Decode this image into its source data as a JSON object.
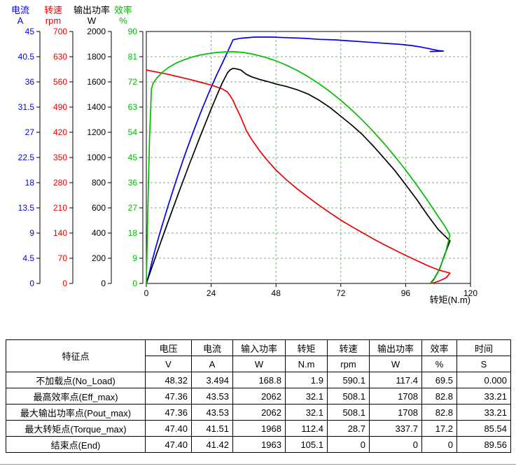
{
  "chart": {
    "x_axis": {
      "label": "转矩(N.m)",
      "min": 0,
      "max": 120,
      "ticks": [
        "0",
        "24",
        "48",
        "72",
        "96",
        "120"
      ]
    },
    "grid_color": "#6abf6a",
    "y_axes": [
      {
        "id": "current",
        "label": "电流",
        "unit": "A",
        "color": "#0000ee",
        "max": 45,
        "ticks": [
          "0",
          "4.5",
          "9",
          "13.5",
          "18",
          "22.5",
          "27",
          "31.5",
          "36",
          "40.5",
          "45"
        ]
      },
      {
        "id": "speed",
        "label": "转速",
        "unit": "rpm",
        "color": "#ee0000",
        "max": 700,
        "ticks": [
          "0",
          "70",
          "140",
          "210",
          "280",
          "350",
          "420",
          "490",
          "560",
          "630",
          "700"
        ]
      },
      {
        "id": "power-out",
        "label": "输出功率",
        "unit": "W",
        "color": "#000000",
        "max": 2000,
        "ticks": [
          "0",
          "200",
          "400",
          "600",
          "800",
          "1000",
          "1200",
          "1400",
          "1600",
          "1800",
          "2000"
        ]
      },
      {
        "id": "efficiency",
        "label": "效率",
        "unit": "%",
        "color": "#00bb00",
        "max": 90,
        "ticks": [
          "0",
          "9",
          "18",
          "27",
          "36",
          "45",
          "54",
          "63",
          "72",
          "81",
          "90"
        ]
      }
    ]
  },
  "chart_data": {
    "type": "line",
    "xlabel": "转矩(N.m)",
    "x_range": [
      0,
      120
    ],
    "grid": true,
    "series": [
      {
        "id": "current",
        "name": "电流",
        "unit": "A",
        "color": "#0000ee",
        "axis_max": 45,
        "points": [
          [
            0,
            0
          ],
          [
            0.8,
            1.3
          ],
          [
            1.9,
            3.49
          ],
          [
            3,
            5.6
          ],
          [
            5,
            9
          ],
          [
            8,
            13.8
          ],
          [
            11,
            18.3
          ],
          [
            14,
            22.6
          ],
          [
            17,
            26.6
          ],
          [
            20,
            30.4
          ],
          [
            23,
            33.9
          ],
          [
            26,
            37.2
          ],
          [
            28,
            39.2
          ],
          [
            30,
            41.3
          ],
          [
            32.1,
            43.53
          ],
          [
            35,
            43.8
          ],
          [
            40,
            44
          ],
          [
            46,
            44
          ],
          [
            52,
            43.9
          ],
          [
            58,
            43.8
          ],
          [
            64,
            43.6
          ],
          [
            70,
            43.5
          ],
          [
            76,
            43.3
          ],
          [
            82,
            43.1
          ],
          [
            88,
            42.9
          ],
          [
            94,
            42.7
          ],
          [
            98,
            42.5
          ],
          [
            102,
            42.2
          ],
          [
            105,
            41.9
          ],
          [
            108,
            41.6
          ],
          [
            110,
            41.5
          ],
          [
            107.5,
            41.45
          ],
          [
            105.1,
            41.42
          ]
        ]
      },
      {
        "id": "speed",
        "name": "转速",
        "unit": "rpm",
        "color": "#ee0000",
        "axis_max": 700,
        "points": [
          [
            0,
            593
          ],
          [
            4,
            587
          ],
          [
            8,
            581
          ],
          [
            12,
            574
          ],
          [
            16,
            567
          ],
          [
            20,
            559
          ],
          [
            24,
            551
          ],
          [
            26,
            546
          ],
          [
            28,
            541
          ],
          [
            30,
            532
          ],
          [
            31,
            522
          ],
          [
            32.1,
            508
          ],
          [
            33.5,
            485
          ],
          [
            35,
            462
          ],
          [
            37,
            425
          ],
          [
            39,
            400
          ],
          [
            42,
            368
          ],
          [
            45,
            340
          ],
          [
            48,
            315
          ],
          [
            52,
            287
          ],
          [
            56,
            262
          ],
          [
            60,
            239
          ],
          [
            64,
            217
          ],
          [
            68,
            196
          ],
          [
            72,
            176
          ],
          [
            76,
            158
          ],
          [
            80,
            141
          ],
          [
            84,
            124
          ],
          [
            88,
            108
          ],
          [
            92,
            93
          ],
          [
            96,
            78
          ],
          [
            100,
            64
          ],
          [
            104,
            50
          ],
          [
            108,
            38
          ],
          [
            112.4,
            28.7
          ],
          [
            111,
            16
          ],
          [
            108.5,
            7
          ],
          [
            106.5,
            2
          ],
          [
            105.1,
            0
          ]
        ]
      },
      {
        "id": "power-out",
        "name": "输出功率",
        "unit": "W",
        "color": "#000000",
        "axis_max": 2000,
        "points": [
          [
            0,
            0
          ],
          [
            1.9,
            117.4
          ],
          [
            4,
            246
          ],
          [
            8,
            487
          ],
          [
            12,
            721
          ],
          [
            16,
            950
          ],
          [
            20,
            1171
          ],
          [
            24,
            1385
          ],
          [
            26,
            1487
          ],
          [
            28,
            1586
          ],
          [
            30,
            1671
          ],
          [
            31,
            1695
          ],
          [
            32.1,
            1708
          ],
          [
            33.5,
            1702
          ],
          [
            35,
            1694
          ],
          [
            37,
            1660
          ],
          [
            39,
            1640
          ],
          [
            42,
            1619
          ],
          [
            45,
            1602
          ],
          [
            48,
            1583
          ],
          [
            52,
            1563
          ],
          [
            56,
            1536
          ],
          [
            60,
            1502
          ],
          [
            64,
            1454
          ],
          [
            68,
            1396
          ],
          [
            72,
            1327
          ],
          [
            76,
            1258
          ],
          [
            80,
            1181
          ],
          [
            84,
            1091
          ],
          [
            88,
            995
          ],
          [
            92,
            896
          ],
          [
            96,
            784
          ],
          [
            100,
            670
          ],
          [
            104,
            545
          ],
          [
            108,
            430
          ],
          [
            112.4,
            337.7
          ],
          [
            110.5,
            230
          ],
          [
            108.5,
            110
          ],
          [
            106.5,
            35
          ],
          [
            105.1,
            0
          ]
        ]
      },
      {
        "id": "efficiency",
        "name": "效率",
        "unit": "%",
        "color": "#00bb00",
        "axis_max": 90,
        "points": [
          [
            0,
            0
          ],
          [
            0.6,
            28
          ],
          [
            1.2,
            52
          ],
          [
            1.9,
            69.5
          ],
          [
            2.5,
            71.5
          ],
          [
            4,
            73.5
          ],
          [
            6,
            75.5
          ],
          [
            8,
            77
          ],
          [
            11,
            78.7
          ],
          [
            14,
            79.9
          ],
          [
            17,
            80.9
          ],
          [
            20,
            81.6
          ],
          [
            23,
            82.1
          ],
          [
            26,
            82.5
          ],
          [
            29,
            82.7
          ],
          [
            32.1,
            82.8
          ],
          [
            36,
            82.5
          ],
          [
            40,
            81.8
          ],
          [
            44,
            80.8
          ],
          [
            48,
            79.5
          ],
          [
            52,
            77.9
          ],
          [
            56,
            76
          ],
          [
            60,
            73.8
          ],
          [
            64,
            71.3
          ],
          [
            68,
            68.5
          ],
          [
            72,
            65.4
          ],
          [
            76,
            62
          ],
          [
            80,
            58.3
          ],
          [
            84,
            54.3
          ],
          [
            88,
            50
          ],
          [
            92,
            45.4
          ],
          [
            96,
            40.5
          ],
          [
            100,
            35.3
          ],
          [
            104,
            29.8
          ],
          [
            108,
            24
          ],
          [
            110.5,
            20.5
          ],
          [
            112.4,
            17.2
          ],
          [
            110.5,
            10
          ],
          [
            108,
            4
          ],
          [
            106.2,
            1
          ],
          [
            105.1,
            0
          ]
        ]
      }
    ]
  },
  "table": {
    "corner_header": "特征点",
    "columns": [
      {
        "label": "电压",
        "unit": "V"
      },
      {
        "label": "电流",
        "unit": "A"
      },
      {
        "label": "输入功率",
        "unit": "W"
      },
      {
        "label": "转矩",
        "unit": "N.m"
      },
      {
        "label": "转速",
        "unit": "rpm"
      },
      {
        "label": "输出功率",
        "unit": "W"
      },
      {
        "label": "效率",
        "unit": "%"
      },
      {
        "label": "时间",
        "unit": "S"
      }
    ],
    "rows": [
      {
        "label": "不加载点(No_Load)",
        "values": [
          "48.32",
          "3.494",
          "168.8",
          "1.9",
          "590.1",
          "117.4",
          "69.5",
          "0.000"
        ]
      },
      {
        "label": "最高效率点(Eff_max)",
        "values": [
          "47.36",
          "43.53",
          "2062",
          "32.1",
          "508.1",
          "1708",
          "82.8",
          "33.21"
        ]
      },
      {
        "label": "最大输出功率点(Pout_max)",
        "values": [
          "47.36",
          "43.53",
          "2062",
          "32.1",
          "508.1",
          "1708",
          "82.8",
          "33.21"
        ]
      },
      {
        "label": "最大转矩点(Torque_max)",
        "values": [
          "47.40",
          "41.51",
          "1968",
          "112.4",
          "28.7",
          "337.7",
          "17.2",
          "85.54"
        ]
      },
      {
        "label": "结束点(End)",
        "values": [
          "47.40",
          "41.42",
          "1963",
          "105.1",
          "0",
          "0",
          "0",
          "89.56"
        ]
      }
    ]
  }
}
